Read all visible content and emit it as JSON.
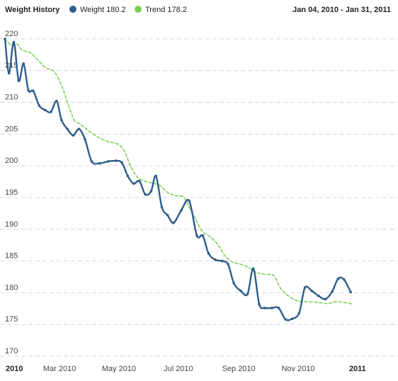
{
  "header": {
    "title": "Weight History",
    "legend": [
      {
        "label": "Weight 180.2",
        "color": "#2e5d8c",
        "icon": "filled-circle"
      },
      {
        "label": "Trend 178.2",
        "color": "#7ccf55",
        "icon": "filled-circle"
      }
    ],
    "date_range": "Jan 04, 2010 - Jan 31, 2011"
  },
  "chart_data": {
    "type": "line",
    "title": "Weight History",
    "xlabel": "",
    "ylabel": "",
    "ylim": [
      170,
      222
    ],
    "yticks": [
      170,
      175,
      180,
      185,
      190,
      195,
      200,
      205,
      210,
      215,
      220
    ],
    "xlim": [
      "2010-01-01",
      "2011-02-05"
    ],
    "xticks": [
      {
        "date": "2010-01-01",
        "label": "2010",
        "bold": true
      },
      {
        "date": "2010-03-01",
        "label": "Mar 2010",
        "bold": false
      },
      {
        "date": "2010-05-01",
        "label": "May 2010",
        "bold": false
      },
      {
        "date": "2010-07-01",
        "label": "Jul 2010",
        "bold": false
      },
      {
        "date": "2010-09-01",
        "label": "Sep 2010",
        "bold": false
      },
      {
        "date": "2010-11-01",
        "label": "Nov 2010",
        "bold": false
      },
      {
        "date": "2011-01-01",
        "label": "2011",
        "bold": true
      }
    ],
    "grid": true,
    "legend_position": "top",
    "series": [
      {
        "name": "Weight 180.2",
        "color": "#2e5d8c",
        "style": "solid",
        "points": [
          [
            "2010-01-04",
            220.0
          ],
          [
            "2010-01-08",
            214.6
          ],
          [
            "2010-01-13",
            219.5
          ],
          [
            "2010-01-18",
            213.4
          ],
          [
            "2010-01-23",
            216.1
          ],
          [
            "2010-01-28",
            211.9
          ],
          [
            "2010-02-02",
            211.8
          ],
          [
            "2010-02-08",
            209.5
          ],
          [
            "2010-02-14",
            208.8
          ],
          [
            "2010-02-20",
            208.5
          ],
          [
            "2010-02-26",
            210.2
          ],
          [
            "2010-03-03",
            207.2
          ],
          [
            "2010-03-09",
            205.8
          ],
          [
            "2010-03-15",
            204.8
          ],
          [
            "2010-03-21",
            205.8
          ],
          [
            "2010-03-27",
            204.2
          ],
          [
            "2010-04-03",
            200.7
          ],
          [
            "2010-04-11",
            200.4
          ],
          [
            "2010-04-20",
            200.7
          ],
          [
            "2010-04-28",
            200.8
          ],
          [
            "2010-05-04",
            200.5
          ],
          [
            "2010-05-10",
            198.4
          ],
          [
            "2010-05-16",
            197.2
          ],
          [
            "2010-05-22",
            197.6
          ],
          [
            "2010-05-28",
            195.5
          ],
          [
            "2010-06-03",
            196.0
          ],
          [
            "2010-06-08",
            198.4
          ],
          [
            "2010-06-14",
            193.5
          ],
          [
            "2010-06-20",
            192.2
          ],
          [
            "2010-06-26",
            191.0
          ],
          [
            "2010-07-04",
            193.0
          ],
          [
            "2010-07-12",
            194.5
          ],
          [
            "2010-07-20",
            189.0
          ],
          [
            "2010-07-26",
            189.0
          ],
          [
            "2010-08-01",
            186.2
          ],
          [
            "2010-08-08",
            185.2
          ],
          [
            "2010-08-15",
            185.0
          ],
          [
            "2010-08-21",
            184.5
          ],
          [
            "2010-08-27",
            181.5
          ],
          [
            "2010-09-03",
            180.3
          ],
          [
            "2010-09-10",
            179.8
          ],
          [
            "2010-09-16",
            183.8
          ],
          [
            "2010-09-22",
            178.2
          ],
          [
            "2010-09-28",
            177.6
          ],
          [
            "2010-10-05",
            177.6
          ],
          [
            "2010-10-12",
            177.6
          ],
          [
            "2010-10-19",
            175.8
          ],
          [
            "2010-10-26",
            175.9
          ],
          [
            "2010-11-02",
            176.8
          ],
          [
            "2010-11-08",
            180.8
          ],
          [
            "2010-11-15",
            180.3
          ],
          [
            "2010-11-22",
            179.5
          ],
          [
            "2010-11-29",
            179.0
          ],
          [
            "2010-12-06",
            180.2
          ],
          [
            "2010-12-12",
            182.2
          ],
          [
            "2010-12-18",
            182.1
          ],
          [
            "2010-12-25",
            180.1
          ]
        ]
      },
      {
        "name": "Trend 178.2",
        "color": "#7ccf55",
        "style": "dashed",
        "points": [
          [
            "2010-01-04",
            220.0
          ],
          [
            "2010-01-10",
            219.0
          ],
          [
            "2010-01-16",
            219.2
          ],
          [
            "2010-01-22",
            218.2
          ],
          [
            "2010-01-30",
            217.8
          ],
          [
            "2010-02-07",
            216.6
          ],
          [
            "2010-02-15",
            215.4
          ],
          [
            "2010-02-23",
            214.9
          ],
          [
            "2010-03-03",
            212.7
          ],
          [
            "2010-03-10",
            209.6
          ],
          [
            "2010-03-16",
            207.2
          ],
          [
            "2010-03-22",
            206.6
          ],
          [
            "2010-03-31",
            205.5
          ],
          [
            "2010-04-10",
            204.5
          ],
          [
            "2010-04-20",
            203.8
          ],
          [
            "2010-04-30",
            203.4
          ],
          [
            "2010-05-07",
            202.2
          ],
          [
            "2010-05-13",
            199.9
          ],
          [
            "2010-05-20",
            198.2
          ],
          [
            "2010-05-27",
            197.6
          ],
          [
            "2010-06-04",
            197.3
          ],
          [
            "2010-06-12",
            196.9
          ],
          [
            "2010-06-20",
            195.8
          ],
          [
            "2010-06-28",
            195.3
          ],
          [
            "2010-07-06",
            195.1
          ],
          [
            "2010-07-12",
            193.5
          ],
          [
            "2010-07-19",
            191.5
          ],
          [
            "2010-07-26",
            189.6
          ],
          [
            "2010-08-02",
            188.9
          ],
          [
            "2010-08-10",
            187.7
          ],
          [
            "2010-08-18",
            185.8
          ],
          [
            "2010-08-26",
            184.8
          ],
          [
            "2010-09-03",
            184.5
          ],
          [
            "2010-09-11",
            184.0
          ],
          [
            "2010-09-19",
            183.2
          ],
          [
            "2010-09-28",
            182.9
          ],
          [
            "2010-10-07",
            182.7
          ],
          [
            "2010-10-14",
            180.7
          ],
          [
            "2010-10-22",
            179.5
          ],
          [
            "2010-10-30",
            178.8
          ],
          [
            "2010-11-08",
            178.6
          ],
          [
            "2010-11-20",
            178.5
          ],
          [
            "2010-12-01",
            178.3
          ],
          [
            "2010-12-10",
            178.6
          ],
          [
            "2010-12-18",
            178.5
          ],
          [
            "2010-12-27",
            178.2
          ]
        ]
      }
    ]
  }
}
